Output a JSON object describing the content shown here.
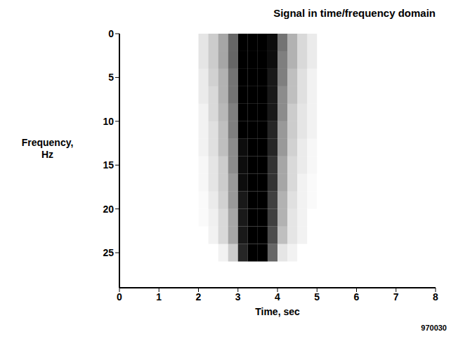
{
  "chart_data": {
    "type": "heatmap",
    "title": "Signal in time/frequency domain",
    "x_label": "Time, sec",
    "y_label": "Frequency, Hz",
    "annotation": "970030",
    "xlim": [
      0,
      8
    ],
    "ylim": [
      0,
      29
    ],
    "xticks": [
      0,
      1,
      2,
      3,
      4,
      5,
      6,
      7,
      8
    ],
    "yticks": [
      0,
      5,
      10,
      15,
      20,
      25
    ],
    "color": "#000000",
    "time_bins": [
      2.0,
      2.25,
      2.5,
      2.75,
      3.0,
      3.25,
      3.5,
      3.75,
      4.0,
      4.25,
      4.5,
      4.75,
      5.0
    ],
    "frequency_bins": [
      0,
      2,
      4,
      6,
      8,
      10,
      12,
      14,
      16,
      18,
      20,
      22,
      24,
      26
    ],
    "cells": [
      [
        0.1,
        0.2,
        0.35,
        0.6,
        1,
        1,
        1,
        0.95,
        0.55,
        0.3,
        0.15,
        0.08
      ],
      [
        0.1,
        0.2,
        0.35,
        0.6,
        1,
        1,
        1,
        0.95,
        0.5,
        0.3,
        0.15,
        0.08
      ],
      [
        0.08,
        0.18,
        0.3,
        0.55,
        1,
        1,
        1,
        0.9,
        0.5,
        0.25,
        0.12,
        0.05
      ],
      [
        0.08,
        0.15,
        0.3,
        0.55,
        1,
        1,
        1,
        0.9,
        0.45,
        0.25,
        0.12,
        0.05
      ],
      [
        0.05,
        0.15,
        0.28,
        0.5,
        1,
        1,
        1,
        0.9,
        0.45,
        0.2,
        0.1,
        0.05
      ],
      [
        0.05,
        0.12,
        0.25,
        0.5,
        1,
        1,
        1,
        0.85,
        0.4,
        0.2,
        0.1,
        0.05
      ],
      [
        0.05,
        0.12,
        0.25,
        0.45,
        0.95,
        1,
        1,
        0.85,
        0.4,
        0.18,
        0.08,
        0.03
      ],
      [
        0.03,
        0.1,
        0.2,
        0.45,
        0.95,
        1,
        1,
        0.8,
        0.35,
        0.15,
        0.08,
        0.03
      ],
      [
        0.03,
        0.1,
        0.2,
        0.4,
        0.95,
        1,
        1,
        0.8,
        0.35,
        0.15,
        0.05,
        0.02
      ],
      [
        0.02,
        0.08,
        0.18,
        0.4,
        0.9,
        1,
        1,
        0.75,
        0.3,
        0.12,
        0.05,
        0.02
      ],
      [
        0.02,
        0.06,
        0.15,
        0.35,
        0.9,
        1,
        1,
        0.75,
        0.3,
        0.1,
        0.05,
        0
      ],
      [
        0,
        0.05,
        0.15,
        0.35,
        0.9,
        1,
        1,
        0.7,
        0.25,
        0.1,
        0.05,
        0
      ],
      [
        0,
        0,
        0.05,
        0.2,
        0.85,
        1,
        1,
        0.6,
        0.1,
        0.05,
        0,
        0
      ]
    ]
  }
}
